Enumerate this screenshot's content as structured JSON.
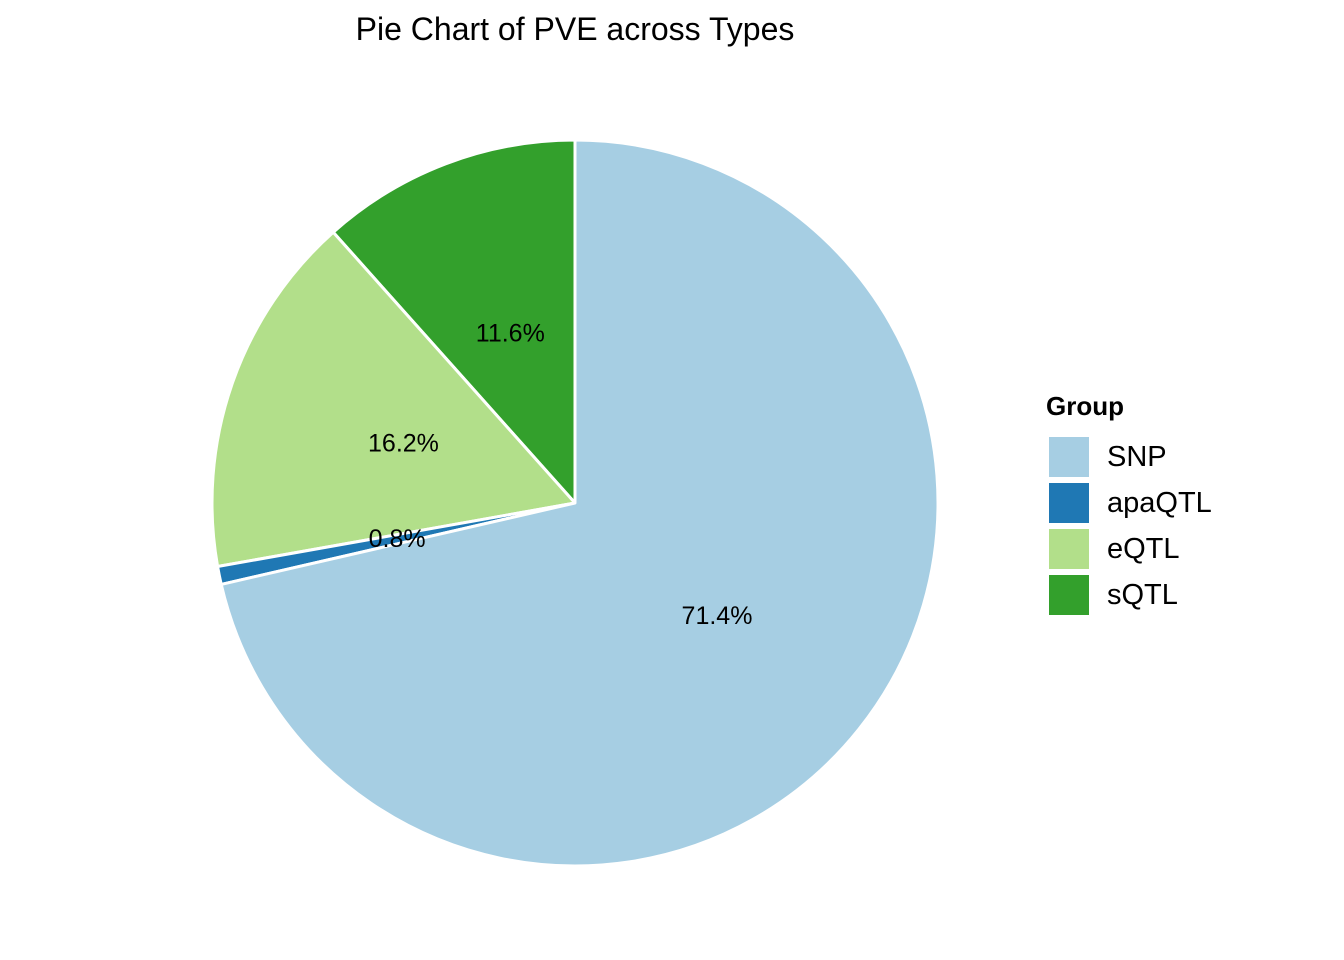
{
  "chart_data": {
    "type": "pie",
    "title": "Pie Chart of PVE across Types",
    "start_angle": "12 o'clock",
    "direction": "counter-clockwise",
    "slices": [
      {
        "name": "sQTL",
        "value": 11.6,
        "label": "11.6%",
        "color": "#33a02c"
      },
      {
        "name": "eQTL",
        "value": 16.2,
        "label": "16.2%",
        "color": "#b2df8a"
      },
      {
        "name": "apaQTL",
        "value": 0.8,
        "label": "0.8%",
        "color": "#1f78b4"
      },
      {
        "name": "SNP",
        "value": 71.4,
        "label": "71.4%",
        "color": "#a6cee3"
      }
    ],
    "legend": {
      "title": "Group",
      "position": "right",
      "items": [
        {
          "label": "SNP",
          "color": "#a6cee3"
        },
        {
          "label": "apaQTL",
          "color": "#1f78b4"
        },
        {
          "label": "eQTL",
          "color": "#b2df8a"
        },
        {
          "label": "sQTL",
          "color": "#33a02c"
        }
      ]
    },
    "slice_border_color": "#ffffff"
  }
}
